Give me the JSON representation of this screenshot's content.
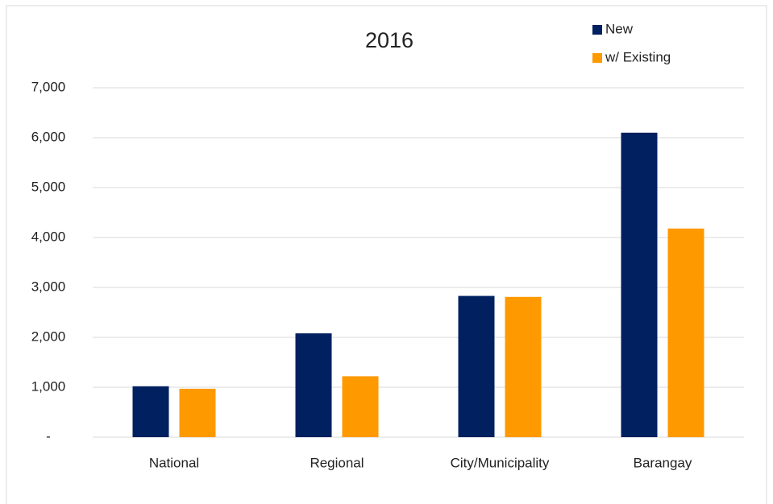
{
  "chart_data": {
    "type": "bar",
    "title": "2016",
    "categories": [
      "National",
      "Regional",
      "City/Municipality",
      "Barangay"
    ],
    "series": [
      {
        "name": "New",
        "color": "#002060",
        "values": [
          1020,
          2080,
          2830,
          6100
        ]
      },
      {
        "name": "w/ Existing",
        "color": "#ff9900",
        "values": [
          970,
          1220,
          2810,
          4180
        ]
      }
    ],
    "ylim": [
      0,
      7000
    ],
    "yticks": [
      {
        "value": 0,
        "label": "-"
      },
      {
        "value": 1000,
        "label": "1,000"
      },
      {
        "value": 2000,
        "label": "2,000"
      },
      {
        "value": 3000,
        "label": "3,000"
      },
      {
        "value": 4000,
        "label": "4,000"
      },
      {
        "value": 5000,
        "label": "5,000"
      },
      {
        "value": 6000,
        "label": "6,000"
      },
      {
        "value": 7000,
        "label": "7,000"
      }
    ],
    "grid": true,
    "legend": "top-right"
  }
}
